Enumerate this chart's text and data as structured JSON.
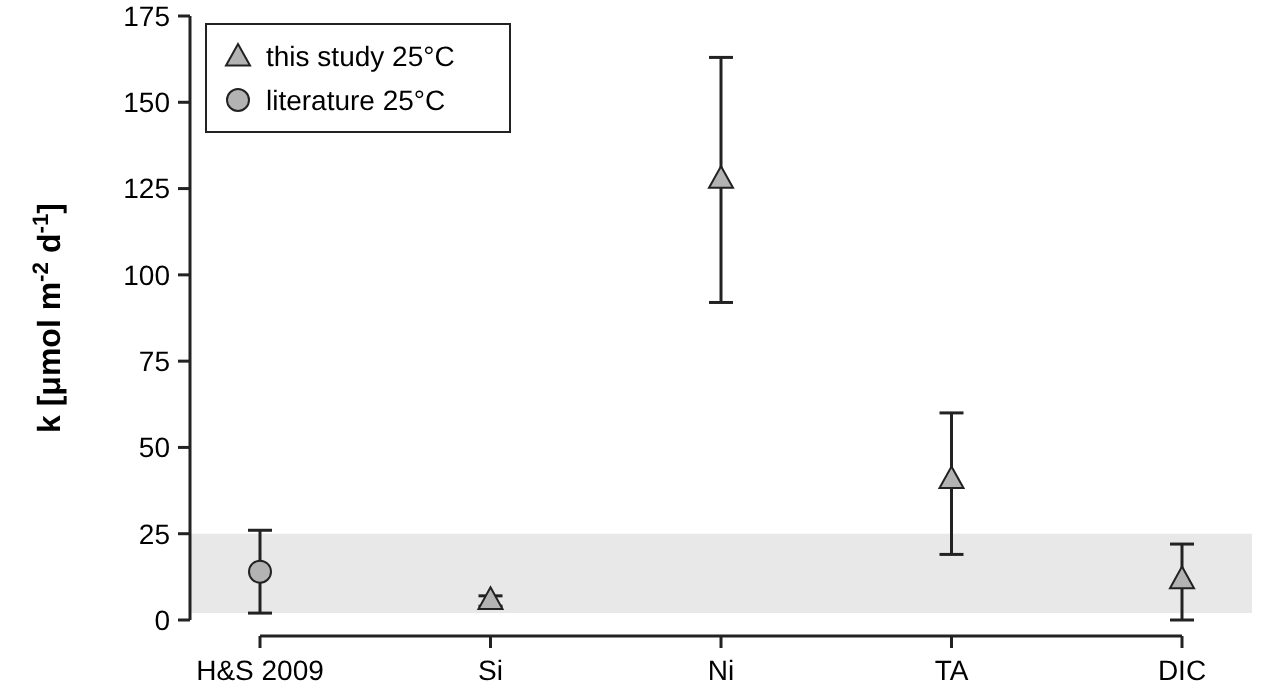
{
  "chart_data": {
    "type": "scatter",
    "ylabel": "k [μmol m$^{-2}$ d$^{-1}$]",
    "categories": [
      "H&S 2009",
      "Si",
      "Ni",
      "TA",
      "DIC"
    ],
    "series": [
      {
        "name": "this study 25°C",
        "color": "#b3b3b3",
        "marker": "triangle",
        "values": [
          null,
          6,
          128,
          41,
          12
        ],
        "errors": [
          null,
          [
            4,
            7
          ],
          [
            92,
            163
          ],
          [
            19,
            60
          ],
          [
            0,
            22
          ]
        ]
      },
      {
        "name": "literature 25°C",
        "color": "#b3b3b3",
        "marker": "circle",
        "values": [
          14,
          null,
          null,
          null,
          null
        ],
        "errors": [
          [
            2,
            26
          ],
          null,
          null,
          null,
          null
        ]
      }
    ],
    "ylim": [
      0,
      175
    ],
    "yticks": [
      0,
      25,
      50,
      75,
      100,
      125,
      150,
      175
    ],
    "bands": [
      {
        "axis": "y",
        "from": 2,
        "to": 25,
        "color": "#e8e8e8"
      }
    ],
    "legend": "top left",
    "grid": false
  }
}
